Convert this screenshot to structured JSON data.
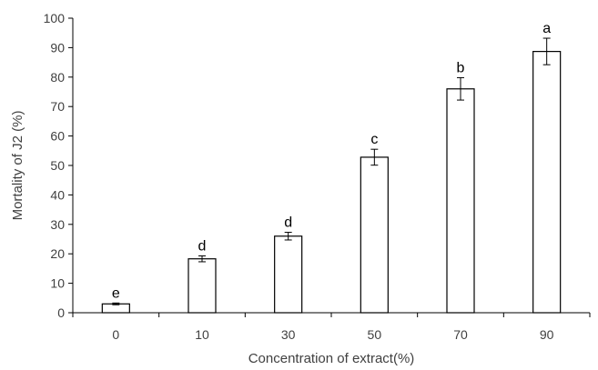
{
  "chart_data": {
    "type": "bar",
    "xlabel": "Concentration of extract(%)",
    "ylabel": "Mortality of J2 (%)",
    "ylim": [
      0,
      100
    ],
    "yticks": [
      "0",
      "10",
      "20",
      "30",
      "40",
      "50",
      "60",
      "70",
      "80",
      "90",
      "100"
    ],
    "categories": [
      "0",
      "10",
      "30",
      "50",
      "70",
      "90"
    ],
    "values": [
      3,
      18.3,
      26,
      52.8,
      76,
      88.7
    ],
    "error": [
      0.3,
      1.0,
      1.3,
      2.7,
      3.8,
      4.5
    ],
    "letters": [
      "e",
      "d",
      "d",
      "c",
      "b",
      "a"
    ],
    "grid": false,
    "legend": "none"
  }
}
